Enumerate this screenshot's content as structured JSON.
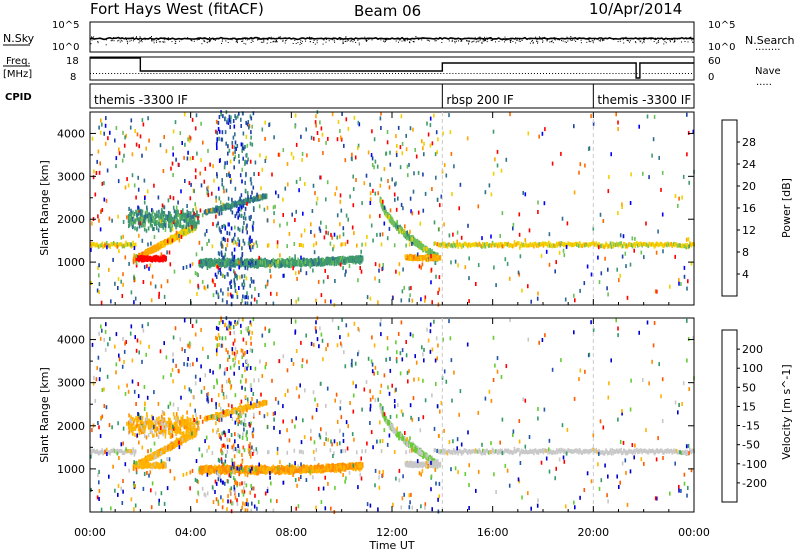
{
  "header": {
    "title": "Fort Hays West (fitACF)",
    "beam": "Beam 06",
    "date": "10/Apr/2014"
  },
  "left_labels": {
    "nsky": "N.Sky",
    "freq_line1": "Freq.",
    "freq_line2": "[MHz]",
    "cpid": "CPID"
  },
  "right_labels": {
    "nsearch": "N.Search",
    "nsearch_dots": "........",
    "nave": "Nave",
    "nave_dots": "....."
  },
  "noise_axis": {
    "left_top": "10^5",
    "left_bottom": "10^0",
    "right_top": "10^5",
    "right_bottom": "10^0"
  },
  "freq_axis": {
    "left_top": "18",
    "left_bottom": "8",
    "right_top": "60",
    "right_bottom": "0"
  },
  "cpid_segments": [
    {
      "label": "themis -3300 IF",
      "start_h": 0,
      "end_h": 14
    },
    {
      "label": "rbsp 200 IF",
      "start_h": 14,
      "end_h": 20
    },
    {
      "label": "themis -3300 IF",
      "start_h": 20,
      "end_h": 24
    }
  ],
  "colors": {
    "power": [
      "#0000ff",
      "#1c3fa8",
      "#2e6e8e",
      "#3f9a6e",
      "#6cc05a",
      "#f0d000",
      "#ffa500",
      "#ff6a00",
      "#ff0000"
    ],
    "velocity": [
      "#ff0000",
      "#ff5a00",
      "#ff8c00",
      "#ffb400",
      "#c8c8c8",
      "#66cc33",
      "#339966",
      "#2255aa",
      "#0000cc"
    ]
  },
  "chart_data": [
    {
      "type": "heatmap",
      "panel": "power",
      "xlabel": "",
      "ylabel": "Slant Range [km]",
      "xlim": [
        0,
        24
      ],
      "ylim": [
        0,
        4500
      ],
      "y_ticks": [
        1000,
        2000,
        3000,
        4000
      ],
      "colorbar": {
        "label": "Power [dB]",
        "ticks": [
          "4",
          "8",
          "12",
          "16",
          "20",
          "24",
          "28"
        ],
        "range": [
          0,
          32
        ]
      },
      "features": [
        {
          "name": "Near-range band",
          "t_start": 0,
          "t_end": 24,
          "range_km": 1400
        },
        {
          "name": "Rising arc",
          "t_start": 1.7,
          "t_end": 4.2,
          "range_start_km": 1050,
          "range_end_km": 1850
        },
        {
          "name": "Upper arc",
          "t_start": 4.5,
          "t_end": 7.0,
          "range_start_km": 2100,
          "range_end_km": 2550
        },
        {
          "name": "Lower band",
          "t_start": 4.3,
          "t_end": 10.8,
          "range_km": 1000
        },
        {
          "name": "Descending arc",
          "t_start": 11.5,
          "t_end": 13.8,
          "range_start_km": 2500,
          "range_end_km": 1100
        }
      ]
    },
    {
      "type": "heatmap",
      "panel": "velocity",
      "xlabel": "Time UT",
      "ylabel": "Slant Range [km]",
      "xlim": [
        0,
        24
      ],
      "ylim": [
        0,
        4500
      ],
      "x_ticks": [
        "00:00",
        "04:00",
        "08:00",
        "12:00",
        "16:00",
        "20:00",
        "00:00"
      ],
      "y_ticks": [
        1000,
        2000,
        3000,
        4000
      ],
      "colorbar": {
        "label": "Velocity [m s^-1]",
        "ticks": [
          "200",
          "100",
          "50",
          "15",
          "-15",
          "-50",
          "-100",
          "-200"
        ],
        "range": [
          -250,
          250
        ]
      },
      "features": [
        {
          "name": "Near-range band",
          "t_start": 0,
          "t_end": 24,
          "range_km": 1400
        },
        {
          "name": "Lower band",
          "t_start": 4.3,
          "t_end": 10.8,
          "range_km": 1000
        }
      ]
    }
  ]
}
